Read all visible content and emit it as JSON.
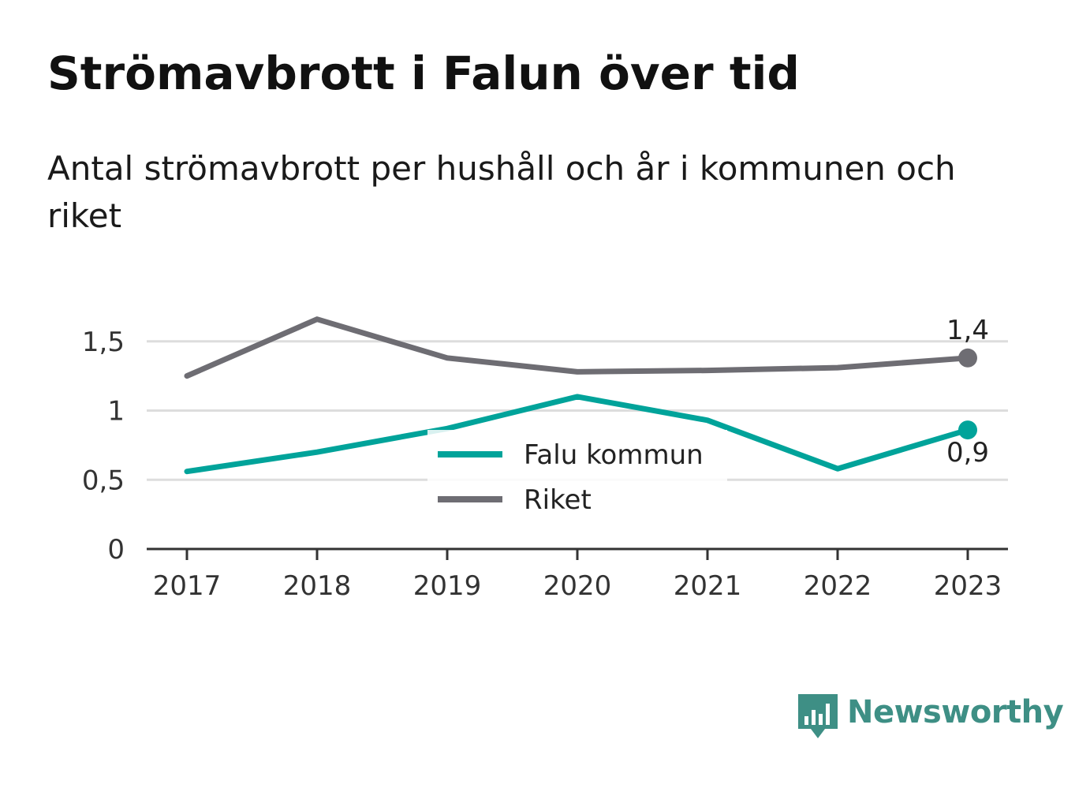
{
  "title": "Strömavbrott i Falun över tid",
  "subtitle": "Antal strömavbrott per hushåll och år i kommunen och riket",
  "logo": {
    "text": "Newsworthy",
    "icon": "newsworthy-chart-icon"
  },
  "colors": {
    "falun": "#00a39a",
    "riket": "#6e6d73",
    "grid": "#dddddd",
    "axis": "#333333"
  },
  "chart_data": {
    "type": "line",
    "x": [
      "2017",
      "2018",
      "2019",
      "2020",
      "2021",
      "2022",
      "2023"
    ],
    "series": [
      {
        "name": "Falu kommun",
        "values": [
          0.56,
          0.7,
          0.87,
          1.1,
          0.93,
          0.58,
          0.86
        ],
        "color": "#00a39a",
        "end_label": "0,9"
      },
      {
        "name": "Riket",
        "values": [
          1.25,
          1.66,
          1.38,
          1.28,
          1.29,
          1.31,
          1.38
        ],
        "color": "#6e6d73",
        "end_label": "1,4"
      }
    ],
    "yticks": [
      0,
      0.5,
      1,
      1.5
    ],
    "ytick_labels": [
      "0",
      "0,5",
      "1",
      "1,5"
    ],
    "ylim": [
      0,
      1.5
    ],
    "grid": true,
    "legend": "center"
  }
}
